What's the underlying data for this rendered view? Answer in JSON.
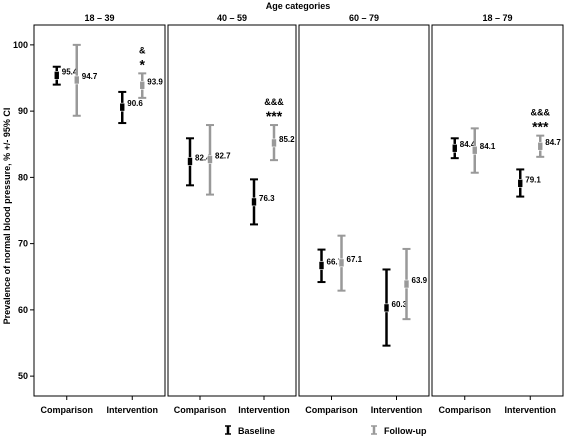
{
  "chart_data": {
    "type": "errorbar",
    "title": "Age categories",
    "ylabel": "Prevalence of normal blood pressure, % +/- 95% CI",
    "xlabel": "",
    "ylim": [
      47,
      103
    ],
    "yticks": [
      50,
      60,
      70,
      80,
      90,
      100
    ],
    "grid": false,
    "legend_position": "bottom",
    "colors": {
      "Baseline": "#000000",
      "Follow-up": "#999999"
    },
    "panels": [
      {
        "label": "18 – 39",
        "categories": [
          "Comparison",
          "Intervention"
        ],
        "series": [
          {
            "name": "Baseline",
            "mean": [
              95.4,
              90.6
            ],
            "ci_low": [
              94.0,
              88.2
            ],
            "ci_high": [
              96.7,
              92.9
            ]
          },
          {
            "name": "Follow-up",
            "mean": [
              94.7,
              93.9
            ],
            "ci_low": [
              89.3,
              92.0
            ],
            "ci_high": [
              100.0,
              95.7
            ]
          }
        ],
        "annotations": [
          {
            "category": "Intervention",
            "lines": [
              "&",
              "*"
            ]
          }
        ]
      },
      {
        "label": "40 – 59",
        "categories": [
          "Comparison",
          "Intervention"
        ],
        "series": [
          {
            "name": "Baseline",
            "mean": [
              82.4,
              76.3
            ],
            "ci_low": [
              78.8,
              72.9
            ],
            "ci_high": [
              85.9,
              79.7
            ]
          },
          {
            "name": "Follow-up",
            "mean": [
              82.7,
              85.2
            ],
            "ci_low": [
              77.4,
              82.6
            ],
            "ci_high": [
              87.9,
              87.9
            ]
          }
        ],
        "annotations": [
          {
            "category": "Intervention",
            "lines": [
              "&&&",
              "***"
            ]
          }
        ]
      },
      {
        "label": "60 – 79",
        "categories": [
          "Comparison",
          "Intervention"
        ],
        "series": [
          {
            "name": "Baseline",
            "mean": [
              66.7,
              60.3
            ],
            "ci_low": [
              64.2,
              54.6
            ],
            "ci_high": [
              69.1,
              66.1
            ]
          },
          {
            "name": "Follow-up",
            "mean": [
              67.1,
              63.9
            ],
            "ci_low": [
              62.9,
              58.6
            ],
            "ci_high": [
              71.2,
              69.2
            ]
          }
        ],
        "annotations": []
      },
      {
        "label": "18 – 79",
        "categories": [
          "Comparison",
          "Intervention"
        ],
        "series": [
          {
            "name": "Baseline",
            "mean": [
              84.4,
              79.1
            ],
            "ci_low": [
              82.9,
              77.1
            ],
            "ci_high": [
              85.9,
              81.2
            ]
          },
          {
            "name": "Follow-up",
            "mean": [
              84.1,
              84.7
            ],
            "ci_low": [
              80.7,
              83.1
            ],
            "ci_high": [
              87.4,
              86.3
            ]
          }
        ],
        "annotations": [
          {
            "category": "Intervention",
            "lines": [
              "&&&",
              "***"
            ]
          }
        ]
      }
    ],
    "legend": [
      {
        "name": "Baseline",
        "label": "Baseline"
      },
      {
        "name": "Follow-up",
        "label": "Follow-up"
      }
    ]
  }
}
